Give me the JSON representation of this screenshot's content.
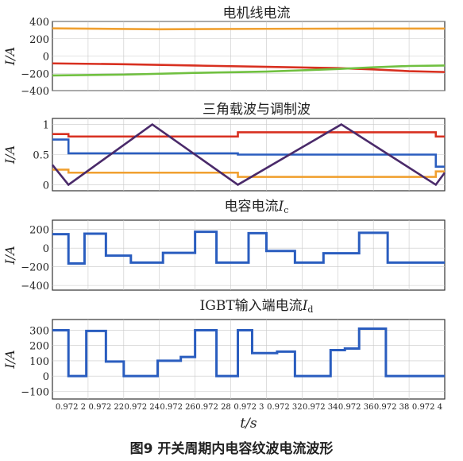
{
  "figure": {
    "caption": "图9   开关周期内电容纹波电流波形",
    "x_axis_label": "t/s",
    "x_tick_labels": [
      "0.972 2",
      "0.972 22",
      "0.972 24",
      "0.972 26",
      "0.972 28",
      "0.972 3",
      "0.972 32",
      "0.972 34",
      "0.972 36",
      "0.972 38",
      "0.972 4"
    ]
  },
  "chart_data": [
    {
      "type": "line",
      "title": "电机线电流",
      "ylabel": "I/A",
      "ylim": [
        -400,
        400
      ],
      "yticks": [
        400,
        200,
        0,
        -200,
        -400
      ],
      "xlim": [
        0.97218,
        0.9724
      ],
      "grid": true,
      "series": [
        {
          "color": "#f0a030",
          "points": [
            [
              0.97218,
              320
            ],
            [
              0.97224,
              310
            ],
            [
              0.9723,
              315
            ],
            [
              0.97236,
              318
            ],
            [
              0.9724,
              318
            ]
          ]
        },
        {
          "color": "#d83020",
          "points": [
            [
              0.97218,
              -85
            ],
            [
              0.97222,
              -95
            ],
            [
              0.97226,
              -110
            ],
            [
              0.9723,
              -125
            ],
            [
              0.97234,
              -140
            ],
            [
              0.97236,
              -155
            ],
            [
              0.97238,
              -175
            ],
            [
              0.9724,
              -185
            ]
          ]
        },
        {
          "color": "#70c040",
          "points": [
            [
              0.97218,
              -225
            ],
            [
              0.97222,
              -215
            ],
            [
              0.97226,
              -195
            ],
            [
              0.9723,
              -180
            ],
            [
              0.97234,
              -150
            ],
            [
              0.97236,
              -130
            ],
            [
              0.97238,
              -115
            ],
            [
              0.9724,
              -110
            ]
          ]
        }
      ]
    },
    {
      "type": "line",
      "title": "三角载波与调制波",
      "ylabel": "I/A",
      "ylim": [
        -0.1,
        1.1
      ],
      "yticks": [
        1,
        0.5,
        0
      ],
      "xlim": [
        0.97218,
        0.9724
      ],
      "grid": true,
      "series": [
        {
          "color": "#d83020",
          "step": true,
          "points": [
            [
              0.97218,
              0.84
            ],
            [
              0.972189,
              0.8
            ],
            [
              0.972284,
              0.87
            ],
            [
              0.972395,
              0.8
            ],
            [
              0.9724,
              0.8
            ]
          ]
        },
        {
          "color": "#2a5dbf",
          "step": true,
          "points": [
            [
              0.97218,
              0.75
            ],
            [
              0.972189,
              0.52
            ],
            [
              0.972284,
              0.5
            ],
            [
              0.972395,
              0.3
            ],
            [
              0.9724,
              0.3
            ]
          ]
        },
        {
          "color": "#f0a030",
          "step": true,
          "points": [
            [
              0.97218,
              0.25
            ],
            [
              0.972189,
              0.2
            ],
            [
              0.972284,
              0.13
            ],
            [
              0.972395,
              0.22
            ],
            [
              0.9724,
              0.22
            ]
          ]
        },
        {
          "color": "#4a2a6a",
          "points": [
            [
              0.97218,
              0.33
            ],
            [
              0.972189,
              0
            ],
            [
              0.972236,
              1
            ],
            [
              0.972284,
              0
            ],
            [
              0.972342,
              1
            ],
            [
              0.972395,
              0
            ],
            [
              0.9724,
              0.2
            ]
          ]
        }
      ]
    },
    {
      "type": "line",
      "title": "电容电流",
      "title_subscript": "c",
      "title_symbol": "I",
      "ylabel": "I/A",
      "ylim": [
        -450,
        300
      ],
      "yticks": [
        200,
        0,
        -200,
        -400
      ],
      "xlim": [
        0.97218,
        0.9724
      ],
      "grid": true,
      "series": [
        {
          "color": "#2a5dbf",
          "step": true,
          "points": [
            [
              0.97218,
              150
            ],
            [
              0.972189,
              -165
            ],
            [
              0.972198,
              155
            ],
            [
              0.97221,
              -80
            ],
            [
              0.972224,
              -155
            ],
            [
              0.972242,
              -50
            ],
            [
              0.97226,
              175
            ],
            [
              0.972272,
              -155
            ],
            [
              0.97229,
              160
            ],
            [
              0.9723,
              -30
            ],
            [
              0.972316,
              -155
            ],
            [
              0.972332,
              -55
            ],
            [
              0.972352,
              165
            ],
            [
              0.972368,
              -155
            ],
            [
              0.9724,
              -155
            ]
          ]
        }
      ]
    },
    {
      "type": "line",
      "title": "IGBT输入端电流",
      "title_subscript": "d",
      "title_symbol": "I",
      "ylabel": "I/A",
      "ylim": [
        -150,
        370
      ],
      "yticks": [
        300,
        200,
        100,
        0,
        -100
      ],
      "xlim": [
        0.97218,
        0.9724
      ],
      "grid": true,
      "series": [
        {
          "color": "#2a5dbf",
          "step": true,
          "points": [
            [
              0.97218,
              300
            ],
            [
              0.972189,
              0
            ],
            [
              0.972199,
              295
            ],
            [
              0.97221,
              95
            ],
            [
              0.97222,
              0
            ],
            [
              0.972229,
              0
            ],
            [
              0.972239,
              100
            ],
            [
              0.972252,
              125
            ],
            [
              0.97226,
              300
            ],
            [
              0.972272,
              0
            ],
            [
              0.972284,
              300
            ],
            [
              0.972292,
              150
            ],
            [
              0.972306,
              160
            ],
            [
              0.972316,
              0
            ],
            [
              0.972326,
              0
            ],
            [
              0.972336,
              170
            ],
            [
              0.972344,
              180
            ],
            [
              0.972352,
              310
            ],
            [
              0.972367,
              0
            ],
            [
              0.9724,
              0
            ]
          ]
        }
      ]
    }
  ]
}
